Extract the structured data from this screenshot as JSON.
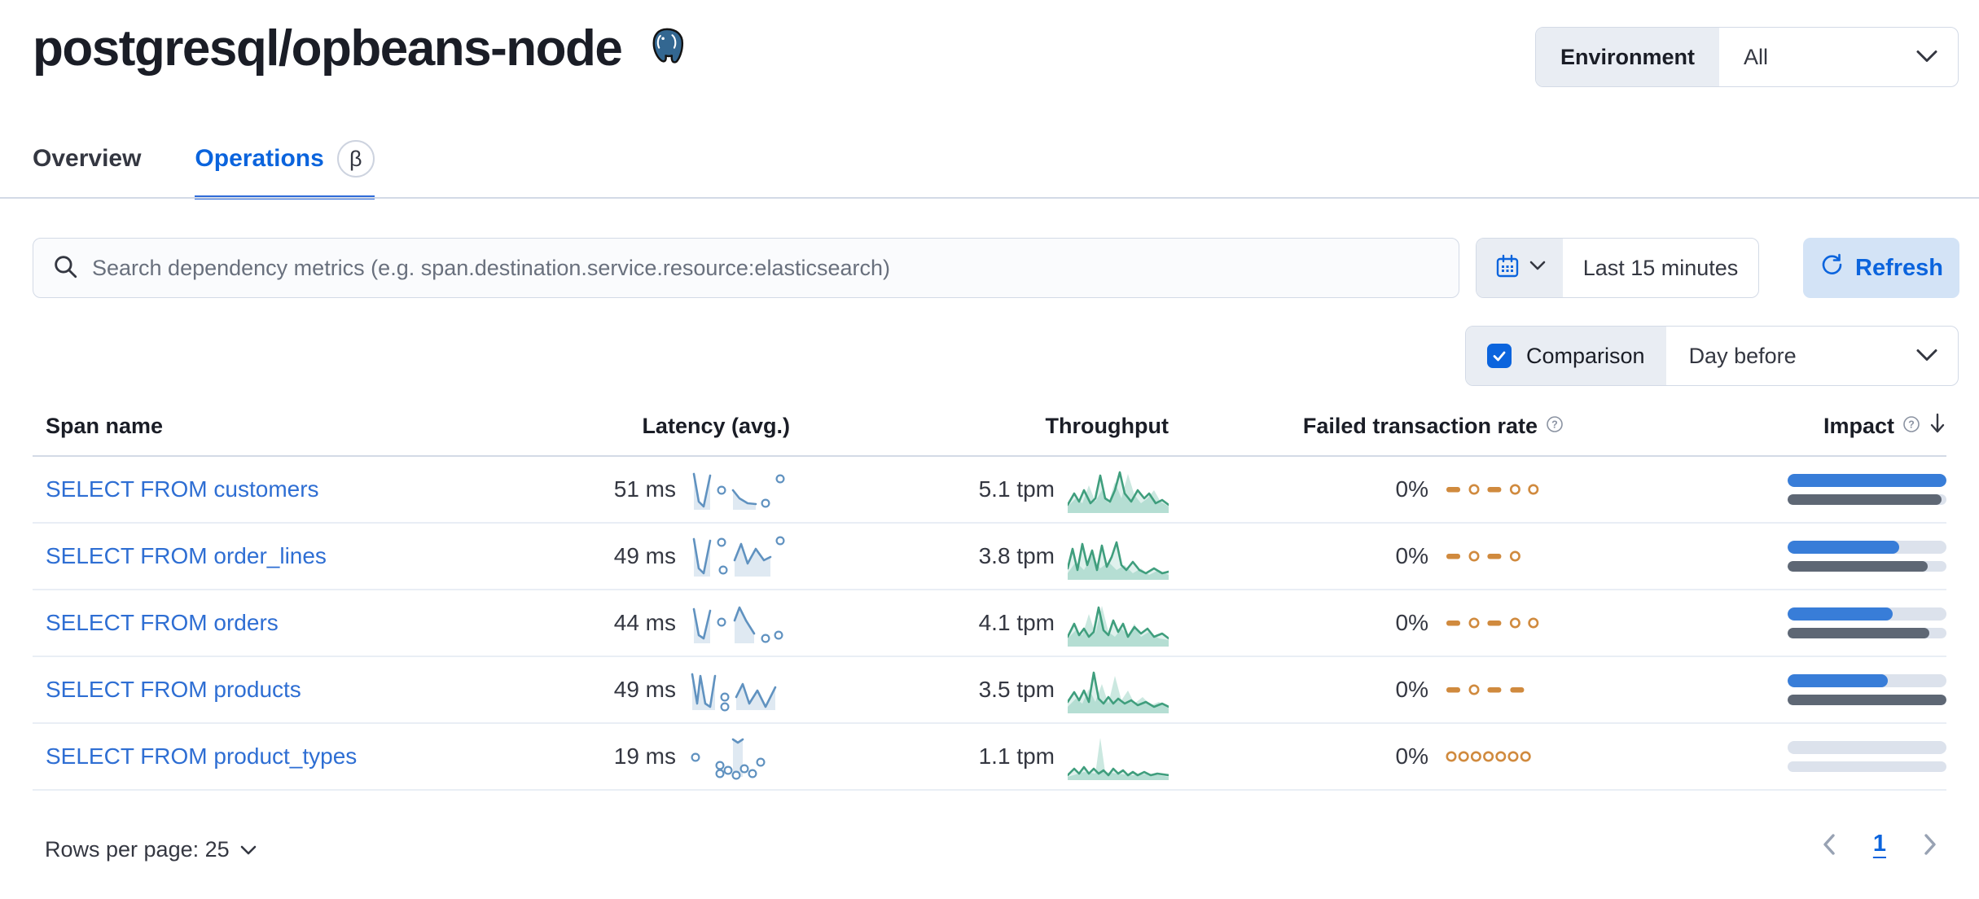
{
  "header": {
    "title": "postgresql/opbeans-node",
    "environment_label": "Environment",
    "environment_value": "All"
  },
  "tabs": [
    {
      "label": "Overview",
      "active": false
    },
    {
      "label": "Operations",
      "active": true,
      "beta": "β"
    }
  ],
  "toolbar": {
    "search_placeholder": "Search dependency metrics (e.g. span.destination.service.resource:elasticsearch)",
    "time_range": "Last 15 minutes",
    "refresh_label": "Refresh",
    "comparison_label": "Comparison",
    "comparison_checked": true,
    "comparison_value": "Day before"
  },
  "table": {
    "columns": [
      {
        "label": "Span name"
      },
      {
        "label": "Latency (avg.)"
      },
      {
        "label": "Throughput"
      },
      {
        "label": "Failed transaction rate",
        "help": true
      },
      {
        "label": "Impact",
        "help": true,
        "sort": "desc"
      }
    ],
    "rows": [
      {
        "span_name": "SELECT FROM customers",
        "latency": "51 ms",
        "throughput": "5.1 tpm",
        "failed_rate": "0%",
        "impact": {
          "current": 100,
          "previous": 97
        },
        "latency_spark": {
          "segments": [
            [
              [
                6,
                10
              ],
              [
                12,
                44
              ],
              [
                18,
                50
              ],
              [
                26,
                12
              ]
            ],
            [
              [
                54,
                30
              ],
              [
                62,
                40
              ],
              [
                72,
                46
              ],
              [
                82,
                47
              ]
            ]
          ],
          "dots": [
            [
              40,
              30
            ],
            [
              94,
              46
            ],
            [
              112,
              16
            ]
          ]
        },
        "throughput_spark": {
          "current": [
            [
              0,
              48
            ],
            [
              8,
              34
            ],
            [
              14,
              44
            ],
            [
              20,
              30
            ],
            [
              28,
              46
            ],
            [
              34,
              40
            ],
            [
              40,
              12
            ],
            [
              46,
              40
            ],
            [
              52,
              44
            ],
            [
              58,
              30
            ],
            [
              64,
              8
            ],
            [
              70,
              34
            ],
            [
              78,
              44
            ],
            [
              86,
              30
            ],
            [
              94,
              40
            ],
            [
              100,
              34
            ],
            [
              108,
              46
            ],
            [
              116,
              42
            ],
            [
              124,
              48
            ]
          ],
          "previous": [
            [
              0,
              50
            ],
            [
              10,
              40
            ],
            [
              18,
              46
            ],
            [
              26,
              24
            ],
            [
              34,
              44
            ],
            [
              42,
              30
            ],
            [
              50,
              46
            ],
            [
              58,
              20
            ],
            [
              66,
              40
            ],
            [
              74,
              10
            ],
            [
              82,
              36
            ],
            [
              90,
              46
            ],
            [
              98,
              40
            ],
            [
              106,
              30
            ],
            [
              114,
              44
            ],
            [
              124,
              50
            ]
          ]
        },
        "failed_spark": [
          "dash",
          "dot",
          "dash",
          "dot",
          "dot"
        ]
      },
      {
        "span_name": "SELECT FROM order_lines",
        "latency": "49 ms",
        "throughput": "3.8 tpm",
        "failed_rate": "0%",
        "impact": {
          "current": 70,
          "previous": 88
        },
        "latency_spark": {
          "segments": [
            [
              [
                6,
                8
              ],
              [
                12,
                44
              ],
              [
                18,
                50
              ],
              [
                26,
                10
              ]
            ],
            [
              [
                56,
                34
              ],
              [
                64,
                14
              ],
              [
                72,
                38
              ],
              [
                82,
                20
              ],
              [
                92,
                34
              ],
              [
                100,
                30
              ]
            ]
          ],
          "dots": [
            [
              40,
              12
            ],
            [
              42,
              46
            ],
            [
              112,
              10
            ]
          ]
        },
        "throughput_spark": {
          "current": [
            [
              0,
              44
            ],
            [
              6,
              20
            ],
            [
              12,
              46
            ],
            [
              18,
              14
            ],
            [
              24,
              40
            ],
            [
              30,
              22
            ],
            [
              36,
              46
            ],
            [
              42,
              16
            ],
            [
              48,
              42
            ],
            [
              54,
              30
            ],
            [
              60,
              12
            ],
            [
              66,
              40
            ],
            [
              72,
              46
            ],
            [
              80,
              36
            ],
            [
              88,
              46
            ],
            [
              96,
              50
            ],
            [
              106,
              44
            ],
            [
              116,
              50
            ],
            [
              124,
              48
            ]
          ],
          "previous": [
            [
              0,
              50
            ],
            [
              10,
              36
            ],
            [
              20,
              46
            ],
            [
              30,
              28
            ],
            [
              40,
              44
            ],
            [
              50,
              36
            ],
            [
              60,
              46
            ],
            [
              70,
              40
            ],
            [
              80,
              50
            ],
            [
              90,
              44
            ],
            [
              100,
              52
            ],
            [
              112,
              46
            ],
            [
              124,
              52
            ]
          ]
        },
        "failed_spark": [
          "dash",
          "dot",
          "dash",
          "dot"
        ]
      },
      {
        "span_name": "SELECT FROM orders",
        "latency": "44 ms",
        "throughput": "4.1 tpm",
        "failed_rate": "0%",
        "impact": {
          "current": 66,
          "previous": 89
        },
        "latency_spark": {
          "segments": [
            [
              [
                6,
                12
              ],
              [
                12,
                44
              ],
              [
                18,
                48
              ],
              [
                26,
                14
              ]
            ],
            [
              [
                56,
                26
              ],
              [
                62,
                10
              ],
              [
                70,
                26
              ],
              [
                80,
                42
              ]
            ]
          ],
          "dots": [
            [
              40,
              28
            ],
            [
              94,
              48
            ],
            [
              110,
              44
            ]
          ]
        },
        "throughput_spark": {
          "current": [
            [
              0,
              46
            ],
            [
              8,
              30
            ],
            [
              14,
              44
            ],
            [
              20,
              36
            ],
            [
              26,
              46
            ],
            [
              32,
              40
            ],
            [
              38,
              10
            ],
            [
              44,
              38
            ],
            [
              50,
              44
            ],
            [
              56,
              26
            ],
            [
              62,
              40
            ],
            [
              68,
              30
            ],
            [
              74,
              46
            ],
            [
              82,
              34
            ],
            [
              90,
              42
            ],
            [
              98,
              36
            ],
            [
              106,
              46
            ],
            [
              116,
              42
            ],
            [
              124,
              48
            ]
          ],
          "previous": [
            [
              0,
              48
            ],
            [
              10,
              38
            ],
            [
              18,
              44
            ],
            [
              26,
              18
            ],
            [
              34,
              42
            ],
            [
              42,
              8
            ],
            [
              50,
              40
            ],
            [
              58,
              46
            ],
            [
              66,
              36
            ],
            [
              74,
              44
            ],
            [
              82,
              30
            ],
            [
              90,
              46
            ],
            [
              100,
              40
            ],
            [
              112,
              48
            ],
            [
              124,
              50
            ]
          ]
        },
        "failed_spark": [
          "dash",
          "dot",
          "dash",
          "dot",
          "dot"
        ]
      },
      {
        "span_name": "SELECT FROM products",
        "latency": "49 ms",
        "throughput": "3.5 tpm",
        "failed_rate": "0%",
        "impact": {
          "current": 63,
          "previous": 100
        },
        "latency_spark": {
          "segments": [
            [
              [
                4,
                10
              ],
              [
                10,
                46
              ],
              [
                14,
                12
              ],
              [
                20,
                46
              ],
              [
                26,
                50
              ],
              [
                32,
                12
              ]
            ],
            [
              [
                58,
                38
              ],
              [
                66,
                22
              ],
              [
                74,
                46
              ],
              [
                84,
                30
              ],
              [
                94,
                50
              ],
              [
                106,
                26
              ]
            ]
          ],
          "dots": [
            [
              44,
              38
            ],
            [
              44,
              50
            ]
          ]
        },
        "throughput_spark": {
          "current": [
            [
              0,
              44
            ],
            [
              8,
              32
            ],
            [
              14,
              42
            ],
            [
              20,
              30
            ],
            [
              26,
              44
            ],
            [
              32,
              8
            ],
            [
              38,
              40
            ],
            [
              44,
              46
            ],
            [
              50,
              38
            ],
            [
              56,
              46
            ],
            [
              62,
              40
            ],
            [
              70,
              46
            ],
            [
              78,
              42
            ],
            [
              86,
              48
            ],
            [
              96,
              44
            ],
            [
              106,
              50
            ],
            [
              116,
              46
            ],
            [
              124,
              50
            ]
          ],
          "previous": [
            [
              0,
              50
            ],
            [
              10,
              40
            ],
            [
              18,
              46
            ],
            [
              26,
              28
            ],
            [
              34,
              44
            ],
            [
              42,
              22
            ],
            [
              50,
              46
            ],
            [
              58,
              12
            ],
            [
              66,
              42
            ],
            [
              74,
              30
            ],
            [
              82,
              46
            ],
            [
              92,
              38
            ],
            [
              102,
              48
            ],
            [
              112,
              44
            ],
            [
              124,
              52
            ]
          ]
        },
        "failed_spark": [
          "dash",
          "dot",
          "dash",
          "dash"
        ]
      },
      {
        "span_name": "SELECT FROM product_types",
        "latency": "19 ms",
        "throughput": "1.1 tpm",
        "failed_rate": "0%",
        "impact": {
          "current": 0,
          "previous": 0
        },
        "latency_spark": {
          "segments": [
            [
              [
                54,
                8
              ],
              [
                60,
                12
              ],
              [
                66,
                8
              ]
            ]
          ],
          "dots": [
            [
              8,
              30
            ],
            [
              38,
              40
            ],
            [
              38,
              50
            ],
            [
              48,
              46
            ],
            [
              58,
              52
            ],
            [
              68,
              44
            ],
            [
              78,
              50
            ],
            [
              88,
              36
            ]
          ]
        },
        "throughput_spark": {
          "current": [
            [
              0,
              52
            ],
            [
              8,
              44
            ],
            [
              14,
              50
            ],
            [
              20,
              42
            ],
            [
              26,
              50
            ],
            [
              32,
              44
            ],
            [
              38,
              50
            ],
            [
              44,
              46
            ],
            [
              50,
              52
            ],
            [
              56,
              44
            ],
            [
              62,
              50
            ],
            [
              68,
              46
            ],
            [
              74,
              52
            ],
            [
              80,
              48
            ],
            [
              86,
              52
            ],
            [
              94,
              48
            ],
            [
              102,
              52
            ],
            [
              110,
              50
            ],
            [
              124,
              52
            ]
          ],
          "previous": [
            [
              0,
              54
            ],
            [
              20,
              48
            ],
            [
              34,
              50
            ],
            [
              40,
              6
            ],
            [
              46,
              48
            ],
            [
              60,
              50
            ],
            [
              80,
              52
            ],
            [
              100,
              50
            ],
            [
              124,
              54
            ]
          ]
        },
        "failed_spark": [
          "dot",
          "dot",
          "dot",
          "dot",
          "dot",
          "dot",
          "dot"
        ]
      }
    ]
  },
  "footer": {
    "rows_per_page_label": "Rows per page: 25",
    "page": "1"
  },
  "colors": {
    "accent": "#0b64dd",
    "link": "#2e6ed3",
    "latency_spark": "#6092c0",
    "throughput_spark": "#54b399",
    "failed_spark": "#d08a3e",
    "impact_current": "#387dd8",
    "impact_previous": "#5e6774"
  }
}
